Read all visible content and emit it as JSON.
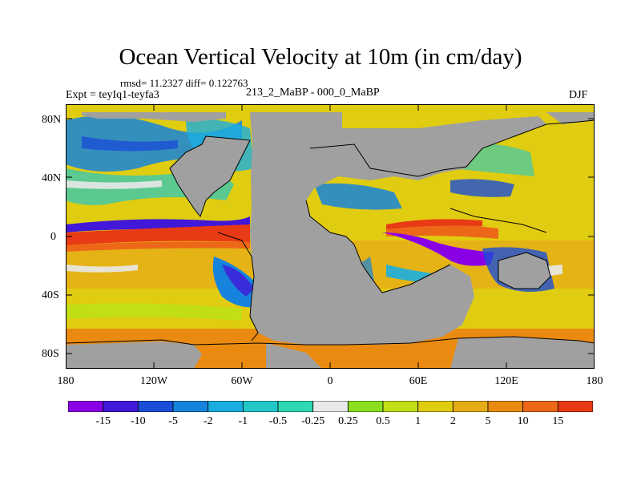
{
  "title": "Ocean Vertical Velocity at 10m (in cm/day)",
  "stats": "rmsd= 11.2327 diff= 0.122763",
  "experiment": "Expt = teyIq1-teyfa3",
  "subtitle": "213_2_MaBP - 000_0_MaBP",
  "season": "DJF",
  "lat_labels": [
    "80N",
    "40N",
    "0",
    "40S",
    "80S"
  ],
  "lon_labels": [
    "180",
    "120W",
    "60W",
    "0",
    "60E",
    "120E",
    "180"
  ],
  "colorbar": {
    "colors": [
      "#8a00e6",
      "#4218d8",
      "#1a4ed6",
      "#1684dc",
      "#1aaee0",
      "#22c8c8",
      "#2ed8b4",
      "#e8e8e8",
      "#8ade1e",
      "#c2de16",
      "#e0cc10",
      "#e6ac18",
      "#ea8a10",
      "#ec6818",
      "#e83a14"
    ],
    "labels": [
      "-15",
      "-10",
      "-5",
      "-2",
      "-1",
      "-0.5",
      "-0.25",
      "0.25",
      "0.5",
      "1",
      "2",
      "5",
      "10",
      "15"
    ]
  },
  "colors": {
    "land": "#a0a0a0",
    "coast": "#000000"
  }
}
